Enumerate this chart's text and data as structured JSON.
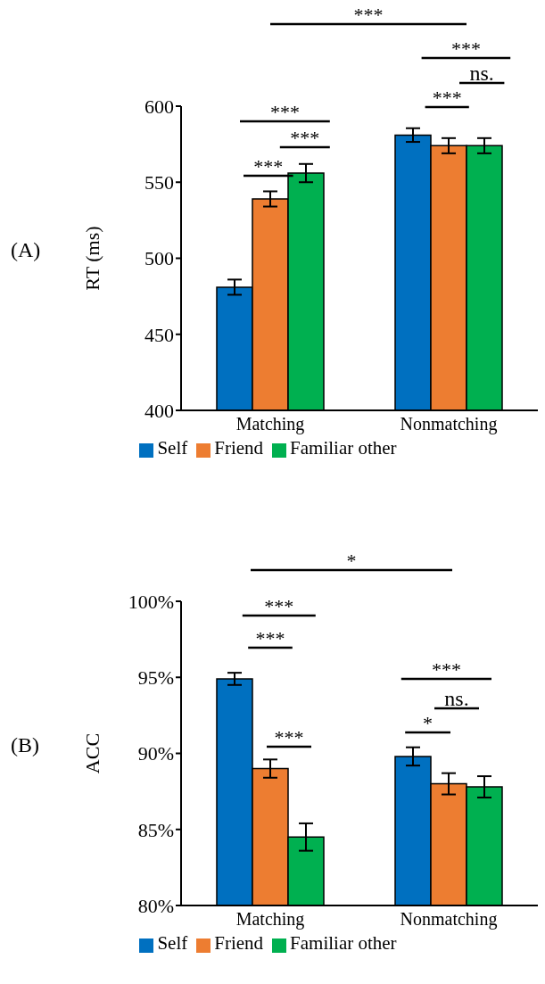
{
  "chart_data": [
    {
      "type": "bar",
      "title": "(A)",
      "ylabel": "RT (ms)",
      "categories": [
        "Matching",
        "Nonmatching"
      ],
      "series": [
        {
          "name": "Self",
          "color": "#0070c0",
          "values": [
            481,
            581
          ],
          "errors": [
            5,
            4.5
          ]
        },
        {
          "name": "Friend",
          "color": "#ed7d31",
          "values": [
            539,
            574
          ],
          "errors": [
            5,
            5
          ]
        },
        {
          "name": "Familiar other",
          "color": "#00b050",
          "values": [
            556,
            574
          ],
          "errors": [
            6,
            5
          ]
        }
      ],
      "ylim": [
        400,
        600
      ],
      "yticks": [
        400,
        450,
        500,
        550,
        600
      ],
      "grid": false,
      "legend": "bottom",
      "annotations": [
        "***",
        "***",
        "***",
        "***",
        "***",
        "ns.",
        "***"
      ]
    },
    {
      "type": "bar",
      "title": "(B)",
      "ylabel": "ACC",
      "categories": [
        "Matching",
        "Nonmatching"
      ],
      "series": [
        {
          "name": "Self",
          "color": "#0070c0",
          "values": [
            94.9,
            89.8
          ],
          "errors": [
            0.4,
            0.6
          ]
        },
        {
          "name": "Friend",
          "color": "#ed7d31",
          "values": [
            89.0,
            88.0
          ],
          "errors": [
            0.6,
            0.7
          ]
        },
        {
          "name": "Familiar other",
          "color": "#00b050",
          "values": [
            84.5,
            87.8
          ],
          "errors": [
            0.9,
            0.7
          ]
        }
      ],
      "ylim": [
        80,
        100
      ],
      "yticks": [
        {
          "value": 80,
          "label": "80%"
        },
        {
          "value": 85,
          "label": "85%"
        },
        {
          "value": 90,
          "label": "90%"
        },
        {
          "value": 95,
          "label": "95%"
        },
        {
          "value": 100,
          "label": "100%"
        }
      ],
      "grid": false,
      "legend": "bottom",
      "annotations": [
        "*",
        "***",
        "***",
        "***",
        "***",
        "ns.",
        "*"
      ]
    }
  ]
}
